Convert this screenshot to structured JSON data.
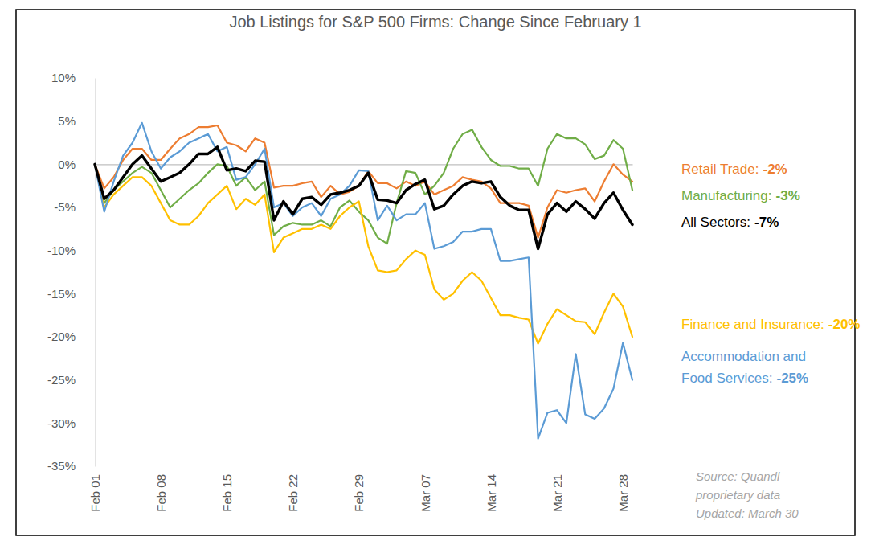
{
  "chart_data": {
    "type": "line",
    "title": "Job Listings for S&P 500 Firms: Change Since February 1",
    "categories": [
      "Feb 01",
      null,
      null,
      null,
      null,
      null,
      null,
      "Feb 08",
      null,
      null,
      null,
      null,
      null,
      null,
      "Feb 15",
      null,
      null,
      null,
      null,
      null,
      null,
      "Feb 22",
      null,
      null,
      null,
      null,
      null,
      null,
      "Feb 29",
      null,
      null,
      null,
      null,
      null,
      null,
      "Mar 07",
      null,
      null,
      null,
      null,
      null,
      null,
      "Mar 14",
      null,
      null,
      null,
      null,
      null,
      null,
      "Mar 21",
      null,
      null,
      null,
      null,
      null,
      null,
      "Mar 28",
      null
    ],
    "ylim": [
      -35,
      10
    ],
    "yticks": [
      {
        "value": 10,
        "label": "10%"
      },
      {
        "value": 5,
        "label": "5%"
      },
      {
        "value": 0,
        "label": "0%"
      },
      {
        "value": -5,
        "label": "-5%"
      },
      {
        "value": -10,
        "label": "-10%"
      },
      {
        "value": -15,
        "label": "-15%"
      },
      {
        "value": -20,
        "label": "-20%"
      },
      {
        "value": -25,
        "label": "-25%"
      },
      {
        "value": -30,
        "label": "-30%"
      },
      {
        "value": -35,
        "label": "-35%"
      }
    ],
    "series": [
      {
        "name": "Retail Trade:",
        "color": "#ED7D31",
        "values": [
          0,
          -2.8,
          -1.5,
          0.5,
          1.8,
          1.8,
          0.5,
          0.5,
          1.8,
          3,
          3.5,
          4.3,
          4.3,
          4.5,
          2.5,
          2.2,
          1.5,
          3,
          2.5,
          -2.7,
          -2.5,
          -2.5,
          -2.2,
          -2,
          -3.8,
          -2.5,
          -3.5,
          -3.2,
          -2.5,
          -0.8,
          -2.2,
          -2.2,
          -2.8,
          -2,
          -2.5,
          -2,
          -3.5,
          -3,
          -2.5,
          -1.5,
          -1.8,
          -2,
          -2.8,
          -4.5,
          -4.5,
          -4.5,
          -4.8,
          -8.5,
          -5,
          -3,
          -3.3,
          -3,
          -2.8,
          -4.3,
          -2,
          0,
          -1.2,
          -2
        ],
        "value_labels": [
          null,
          null,
          null,
          null,
          null,
          null,
          null,
          null,
          null,
          null,
          null,
          null,
          null,
          null,
          null,
          null,
          null,
          null,
          null,
          null,
          null,
          null,
          null,
          null,
          null,
          null,
          null,
          null,
          null,
          null,
          null,
          null,
          null,
          null,
          null,
          null,
          null,
          null,
          null,
          null,
          null,
          null,
          null,
          null,
          null,
          null,
          null,
          null,
          null,
          null,
          null,
          null,
          null,
          null,
          null,
          null,
          null,
          "-2%"
        ]
      },
      {
        "name": "Manufacturing:",
        "color": "#70AD47",
        "values": [
          0,
          -4.5,
          -3,
          -2,
          -1,
          -0.3,
          -1,
          -3,
          -5,
          -4,
          -3,
          -2.2,
          -1,
          0,
          -0.2,
          -2.5,
          -1.5,
          -3,
          -2,
          -8.2,
          -7.2,
          -6.8,
          -7,
          -7,
          -6.5,
          -7.2,
          -5,
          -4.2,
          -5.5,
          -6.5,
          -8.5,
          -9.2,
          -4.5,
          -0.8,
          -1,
          -3.5,
          -2.5,
          -1,
          1.8,
          3.5,
          4,
          2,
          0.5,
          -0.2,
          -0.2,
          -0.5,
          -0.5,
          -2.5,
          1.8,
          3.5,
          3,
          3,
          2.3,
          0.6,
          1,
          2.8,
          1.8,
          -3
        ],
        "value_labels": [
          null,
          null,
          null,
          null,
          null,
          null,
          null,
          null,
          null,
          null,
          null,
          null,
          null,
          null,
          null,
          null,
          null,
          null,
          null,
          null,
          null,
          null,
          null,
          null,
          null,
          null,
          null,
          null,
          null,
          null,
          null,
          null,
          null,
          null,
          null,
          null,
          null,
          null,
          null,
          null,
          null,
          null,
          null,
          null,
          null,
          null,
          null,
          null,
          null,
          null,
          null,
          null,
          null,
          null,
          null,
          null,
          null,
          "-3%"
        ]
      },
      {
        "name": "All Sectors:",
        "color": "#000000",
        "line_style": "thick",
        "values": [
          0,
          -4,
          -3,
          -1.5,
          0,
          1,
          -0.5,
          -2,
          -1.5,
          -1,
          0,
          1.2,
          1.2,
          2,
          -0.7,
          -0.5,
          -0.8,
          0.4,
          0.3,
          -6.5,
          -4.3,
          -5.8,
          -4,
          -3.8,
          -4.7,
          -3.5,
          -3.3,
          -3,
          -2.5,
          -1,
          -4.1,
          -4.2,
          -4.5,
          -3,
          -2.3,
          -1.8,
          -5.2,
          -4.8,
          -3.5,
          -2.5,
          -2,
          -2.2,
          -2,
          -3.8,
          -4.8,
          -5.3,
          -5.3,
          -9.8,
          -5.8,
          -4.5,
          -5.5,
          -4.3,
          -5.2,
          -6.3,
          -4.5,
          -3.3,
          -5.3,
          -7
        ],
        "value_labels": [
          null,
          null,
          null,
          null,
          null,
          null,
          null,
          null,
          null,
          null,
          null,
          null,
          null,
          null,
          null,
          null,
          null,
          null,
          null,
          null,
          null,
          null,
          null,
          null,
          null,
          null,
          null,
          null,
          null,
          null,
          null,
          null,
          null,
          null,
          null,
          null,
          null,
          null,
          null,
          null,
          null,
          null,
          null,
          null,
          null,
          null,
          null,
          null,
          null,
          null,
          null,
          null,
          null,
          null,
          null,
          null,
          null,
          "-7%"
        ]
      },
      {
        "name": "Finance and Insurance:",
        "color": "#FFC000",
        "values": [
          0,
          -5,
          -3.5,
          -2.5,
          -1.5,
          -1.5,
          -2.5,
          -4.5,
          -6.5,
          -7,
          -7,
          -6,
          -4.5,
          -3.5,
          -2.5,
          -5.2,
          -4,
          -4.7,
          -3.5,
          -10.2,
          -8.5,
          -8,
          -7.5,
          -7.5,
          -7,
          -7.5,
          -6,
          -5,
          -4.3,
          -9.5,
          -12.3,
          -12.5,
          -12.3,
          -11,
          -10,
          -10.5,
          -14.5,
          -15.7,
          -15,
          -13.5,
          -12.5,
          -13.5,
          -15.5,
          -17.5,
          -17.5,
          -17.8,
          -18,
          -20.8,
          -18.5,
          -16.8,
          -17.5,
          -18.2,
          -18.3,
          -19.7,
          -17.2,
          -15,
          -16.5,
          -20
        ],
        "value_labels": [
          null,
          null,
          null,
          null,
          null,
          null,
          null,
          null,
          null,
          null,
          null,
          null,
          null,
          null,
          null,
          null,
          null,
          null,
          null,
          null,
          null,
          null,
          null,
          null,
          null,
          null,
          null,
          null,
          null,
          null,
          null,
          null,
          null,
          null,
          null,
          null,
          null,
          null,
          null,
          null,
          null,
          null,
          null,
          null,
          null,
          null,
          null,
          null,
          null,
          null,
          null,
          null,
          null,
          null,
          null,
          null,
          null,
          "-20%"
        ]
      },
      {
        "name": "Accommodation and Food Services:",
        "color": "#5B9BD5",
        "values": [
          0,
          -5.5,
          -2,
          1,
          2.5,
          4.8,
          1.5,
          -0.5,
          0.8,
          1.5,
          2.5,
          3,
          3.5,
          1.5,
          2,
          -1.8,
          -1.5,
          0,
          1.8,
          -5,
          -4.5,
          -6,
          -5,
          -4.5,
          -6,
          -4,
          -3.5,
          -2.5,
          -0.7,
          -0.8,
          -6.5,
          -4.8,
          -6.5,
          -5.8,
          -5.8,
          -4.5,
          -9.8,
          -9.5,
          -9,
          -7.8,
          -7.8,
          -7.5,
          -7.5,
          -11.2,
          -11.2,
          -11,
          -10.8,
          -31.8,
          -28.8,
          -28.5,
          -30,
          -22,
          -29,
          -29.5,
          -28.3,
          -26,
          -20.7,
          -25
        ],
        "value_labels": [
          null,
          null,
          null,
          null,
          null,
          null,
          null,
          null,
          null,
          null,
          null,
          null,
          null,
          null,
          null,
          null,
          null,
          null,
          null,
          null,
          null,
          null,
          null,
          null,
          null,
          null,
          null,
          null,
          null,
          null,
          null,
          null,
          null,
          null,
          null,
          null,
          null,
          null,
          null,
          null,
          null,
          null,
          null,
          null,
          null,
          null,
          null,
          null,
          null,
          null,
          null,
          null,
          null,
          null,
          null,
          null,
          null,
          "-25%"
        ]
      }
    ],
    "annotations": [
      "Source: Quandl",
      "proprietary data",
      "Updated: March 30"
    ]
  }
}
